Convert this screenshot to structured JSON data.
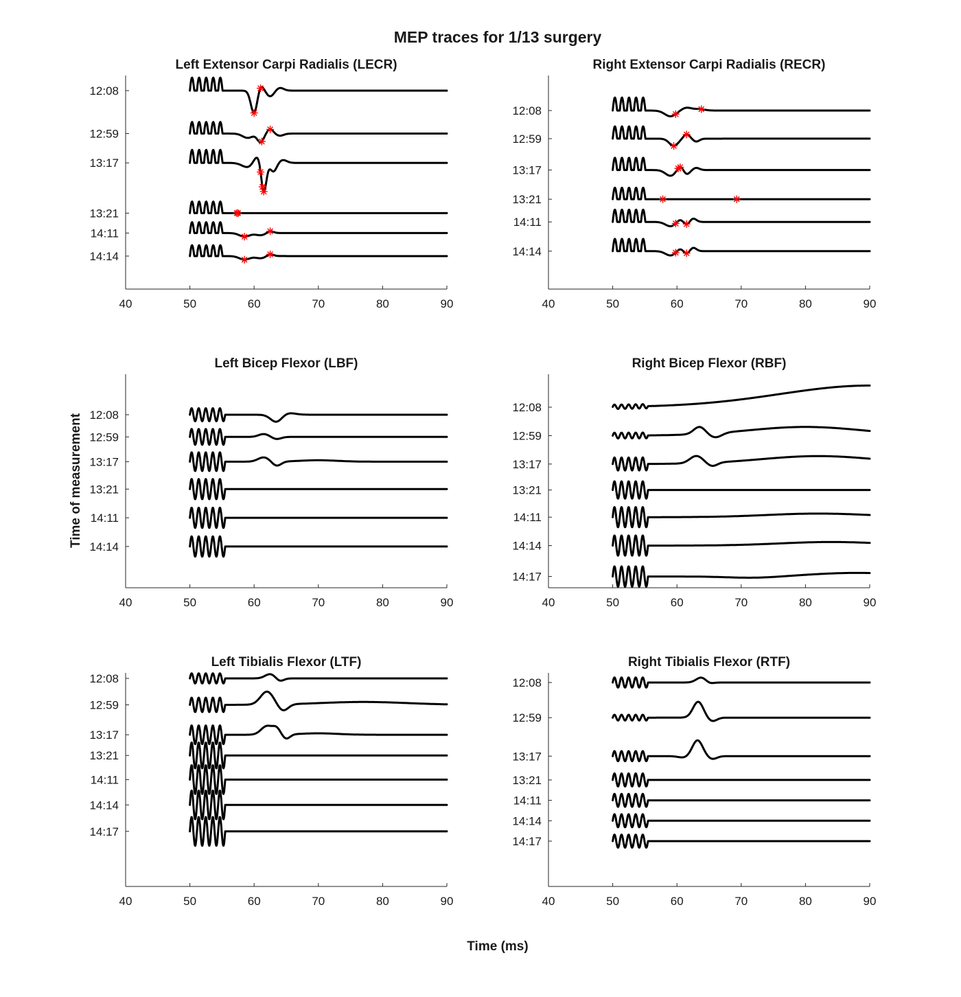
{
  "figure": {
    "title": "MEP traces for 1/13 surgery",
    "xlabel": "Time (ms)",
    "ylabel": "Time of measurement"
  },
  "colors": {
    "trace": "#000000",
    "marker": "#ff0000",
    "axis": "#262626"
  },
  "chart_data": [
    {
      "type": "line",
      "id": "lecr",
      "title": "Left Extensor Carpi Radialis (LECR)",
      "xlim": [
        40,
        90
      ],
      "xticks": [
        40,
        50,
        60,
        70,
        80,
        90
      ],
      "stimulus_window_ms": [
        50,
        55.5
      ],
      "stimulus_shape": "pulse",
      "stimulus_amplitude": [
        0.9,
        0.8,
        0.9,
        0.8,
        0.75,
        0.75
      ],
      "series": [
        {
          "label": "12:08",
          "offset": 0,
          "features": [
            [
              60,
              -1.6,
              0.5
            ],
            [
              61,
              0.4,
              0.5
            ],
            [
              62.5,
              -0.4,
              0.6
            ],
            [
              64,
              0.2,
              0.6
            ]
          ],
          "markers": [
            61,
            60
          ]
        },
        {
          "label": "12:59",
          "offset": 2.05,
          "features": [
            [
              59,
              -0.3,
              0.8
            ],
            [
              61,
              -0.6,
              0.5
            ],
            [
              62.5,
              0.3,
              0.5
            ],
            [
              64,
              -0.15,
              0.6
            ]
          ],
          "markers": [
            62.5,
            61.2
          ]
        },
        {
          "label": "13:17",
          "offset": 3.45,
          "features": [
            [
              59,
              -0.3,
              0.9
            ],
            [
              60.5,
              0.5,
              0.6
            ],
            [
              61.5,
              -2.1,
              0.4
            ],
            [
              63,
              -0.6,
              0.5
            ],
            [
              64.5,
              0.2,
              0.6
            ]
          ],
          "markers": [
            61.5,
            61,
            61.3
          ]
        },
        {
          "label": "13:21",
          "offset": 5.85,
          "features": [],
          "markers": [
            57.3,
            57.5
          ]
        },
        {
          "label": "14:11",
          "offset": 6.8,
          "features": [
            [
              58.5,
              -0.25,
              0.8
            ],
            [
              61,
              -0.15,
              0.8
            ],
            [
              62.5,
              0.15,
              0.5
            ]
          ],
          "markers": [
            62.5,
            58.5
          ]
        },
        {
          "label": "14:14",
          "offset": 7.9,
          "features": [
            [
              58.5,
              -0.25,
              0.8
            ],
            [
              61,
              -0.15,
              0.8
            ],
            [
              62.5,
              0.15,
              0.5
            ]
          ],
          "markers": [
            62.5,
            58.5
          ]
        }
      ]
    },
    {
      "type": "line",
      "id": "recr",
      "title": "Right Extensor Carpi Radialis (RECR)",
      "xlim": [
        40,
        90
      ],
      "xticks": [
        40,
        50,
        60,
        70,
        80,
        90
      ],
      "stimulus_window_ms": [
        50,
        55.5
      ],
      "stimulus_shape": "pulse",
      "stimulus_amplitude": [
        0.9,
        0.85,
        0.85,
        0.8,
        0.85,
        0.85
      ],
      "series": [
        {
          "label": "12:08",
          "offset": 0,
          "features": [
            [
              59,
              -0.4,
              0.9
            ],
            [
              61.5,
              0.2,
              0.8
            ],
            [
              63.5,
              0.1,
              0.8
            ]
          ],
          "markers": [
            59.8,
            63.8
          ]
        },
        {
          "label": "12:59",
          "offset": 1.3,
          "features": [
            [
              59.5,
              -0.5,
              0.7
            ],
            [
              61.5,
              0.3,
              0.5
            ],
            [
              63,
              -0.2,
              0.5
            ]
          ],
          "markers": [
            59.5,
            61.5
          ]
        },
        {
          "label": "13:17",
          "offset": 2.75,
          "features": [
            [
              59,
              -0.4,
              0.8
            ],
            [
              60.5,
              0.3,
              0.5
            ],
            [
              61.5,
              -0.3,
              0.5
            ],
            [
              63,
              0.15,
              0.5
            ]
          ],
          "markers": [
            60.2,
            60.5
          ]
        },
        {
          "label": "13:21",
          "offset": 4.1,
          "features": [],
          "markers": [
            57.8,
            69.3
          ]
        },
        {
          "label": "14:11",
          "offset": 5.15,
          "features": [
            [
              59,
              -0.3,
              0.8
            ],
            [
              60.5,
              0.2,
              0.5
            ],
            [
              61.5,
              -0.2,
              0.5
            ],
            [
              62.5,
              0.25,
              0.5
            ]
          ],
          "markers": [
            59.8,
            61.5
          ]
        },
        {
          "label": "14:14",
          "offset": 6.5,
          "features": [
            [
              59,
              -0.3,
              0.8
            ],
            [
              60.5,
              0.2,
              0.5
            ],
            [
              61.5,
              -0.2,
              0.5
            ],
            [
              62.5,
              0.25,
              0.5
            ]
          ],
          "markers": [
            59.8,
            61.5
          ]
        }
      ]
    },
    {
      "type": "line",
      "id": "lbf",
      "title": "Left Bicep Flexor (LBF)",
      "xlim": [
        40,
        90
      ],
      "xticks": [
        40,
        50,
        60,
        70,
        80,
        90
      ],
      "stimulus_window_ms": [
        50,
        55.5
      ],
      "stimulus_shape": "biphasic",
      "stimulus_amplitude": [
        0.45,
        0.55,
        0.65,
        0.7,
        0.7,
        0.7
      ],
      "series": [
        {
          "label": "12:08",
          "offset": 0,
          "features": [
            [
              63.5,
              -0.55,
              0.9
            ],
            [
              65,
              0.15,
              1.2
            ]
          ],
          "markers": []
        },
        {
          "label": "12:59",
          "offset": 0.85,
          "features": [
            [
              61.5,
              0.2,
              0.8
            ],
            [
              63.5,
              -0.15,
              0.7
            ]
          ],
          "markers": []
        },
        {
          "label": "13:17",
          "offset": 1.8,
          "features": [
            [
              61.5,
              0.3,
              0.9
            ],
            [
              63.5,
              -0.3,
              0.7
            ],
            [
              70,
              0.1,
              3
            ]
          ],
          "markers": []
        },
        {
          "label": "13:21",
          "offset": 2.85,
          "features": [],
          "markers": []
        },
        {
          "label": "14:11",
          "offset": 3.95,
          "features": [],
          "markers": []
        },
        {
          "label": "14:14",
          "offset": 5.05,
          "features": [],
          "markers": []
        }
      ]
    },
    {
      "type": "line",
      "id": "rbf",
      "title": "Right Bicep Flexor (RBF)",
      "xlim": [
        40,
        90
      ],
      "xticks": [
        40,
        50,
        60,
        70,
        80,
        90
      ],
      "stimulus_window_ms": [
        50,
        55.5
      ],
      "stimulus_shape": "biphasic",
      "stimulus_amplitude": [
        0.15,
        0.2,
        0.45,
        0.6,
        0.7,
        0.7,
        0.7
      ],
      "series": [
        {
          "label": "12:08",
          "offset": 0,
          "features": [
            [
              90,
              1.5,
              14
            ]
          ],
          "markers": []
        },
        {
          "label": "12:59",
          "offset": 1.15,
          "features": [
            [
              63.5,
              0.5,
              0.9
            ],
            [
              66,
              -0.3,
              1
            ],
            [
              80,
              0.6,
              9
            ]
          ],
          "markers": []
        },
        {
          "label": "13:17",
          "offset": 2.3,
          "features": [
            [
              63,
              0.5,
              1
            ],
            [
              65.5,
              -0.25,
              0.8
            ],
            [
              82,
              0.55,
              9
            ]
          ],
          "markers": []
        },
        {
          "label": "13:21",
          "offset": 3.35,
          "features": [],
          "markers": []
        },
        {
          "label": "14:11",
          "offset": 4.45,
          "features": [
            [
              82,
              0.25,
              8
            ]
          ],
          "markers": []
        },
        {
          "label": "14:14",
          "offset": 5.6,
          "features": [
            [
              84,
              0.25,
              8
            ]
          ],
          "markers": []
        },
        {
          "label": "14:17",
          "offset": 6.85,
          "features": [
            [
              72,
              -0.1,
              4
            ],
            [
              88,
              0.25,
              7
            ]
          ],
          "markers": []
        }
      ]
    },
    {
      "type": "line",
      "id": "ltf",
      "title": "Left Tibialis Flexor (LTF)",
      "xlim": [
        40,
        90
      ],
      "xticks": [
        40,
        50,
        60,
        70,
        80,
        90
      ],
      "stimulus_window_ms": [
        50,
        55.5
      ],
      "stimulus_shape": "biphasic",
      "stimulus_amplitude": [
        0.35,
        0.5,
        0.65,
        0.9,
        1.0,
        1.0,
        1.0
      ],
      "series": [
        {
          "label": "12:08",
          "offset": 0,
          "features": [
            [
              62.5,
              0.3,
              0.8
            ],
            [
              64,
              -0.2,
              0.6
            ]
          ],
          "markers": []
        },
        {
          "label": "12:59",
          "offset": 1.15,
          "features": [
            [
              62,
              0.9,
              1
            ],
            [
              64.5,
              -0.45,
              0.8
            ],
            [
              77,
              0.2,
              7
            ]
          ],
          "markers": []
        },
        {
          "label": "13:17",
          "offset": 2.45,
          "features": [
            [
              62,
              0.6,
              0.9
            ],
            [
              63.5,
              0.4,
              0.6
            ],
            [
              65,
              -0.3,
              0.6
            ],
            [
              70,
              0.1,
              3
            ]
          ],
          "markers": []
        },
        {
          "label": "13:21",
          "offset": 3.35,
          "features": [],
          "markers": []
        },
        {
          "label": "14:11",
          "offset": 4.4,
          "features": [],
          "markers": []
        },
        {
          "label": "14:14",
          "offset": 5.5,
          "features": [],
          "markers": []
        },
        {
          "label": "14:17",
          "offset": 6.65,
          "features": [],
          "markers": []
        }
      ]
    },
    {
      "type": "line",
      "id": "rtf",
      "title": "Right Tibialis Flexor (RTF)",
      "xlim": [
        40,
        90
      ],
      "xticks": [
        40,
        50,
        60,
        70,
        80,
        90
      ],
      "stimulus_window_ms": [
        50,
        55.5
      ],
      "stimulus_shape": "biphasic",
      "stimulus_amplitude": [
        0.35,
        0.2,
        0.35,
        0.45,
        0.45,
        0.45,
        0.45
      ],
      "series": [
        {
          "label": "12:08",
          "offset": 0,
          "features": [
            [
              63.8,
              0.35,
              0.8
            ],
            [
              65,
              -0.1,
              0.6
            ]
          ],
          "markers": []
        },
        {
          "label": "12:59",
          "offset": 1.55,
          "features": [
            [
              63.3,
              1.1,
              0.8
            ],
            [
              65.5,
              -0.25,
              0.7
            ]
          ],
          "markers": []
        },
        {
          "label": "13:17",
          "offset": 3.25,
          "features": [
            [
              63.2,
              1.1,
              0.8
            ],
            [
              61,
              -0.1,
              0.8
            ],
            [
              65.5,
              -0.2,
              0.7
            ]
          ],
          "markers": []
        },
        {
          "label": "13:21",
          "offset": 4.3,
          "features": [],
          "markers": []
        },
        {
          "label": "14:11",
          "offset": 5.2,
          "features": [],
          "markers": []
        },
        {
          "label": "14:14",
          "offset": 6.1,
          "features": [],
          "markers": []
        },
        {
          "label": "14:17",
          "offset": 7.0,
          "features": [],
          "markers": []
        }
      ]
    }
  ]
}
